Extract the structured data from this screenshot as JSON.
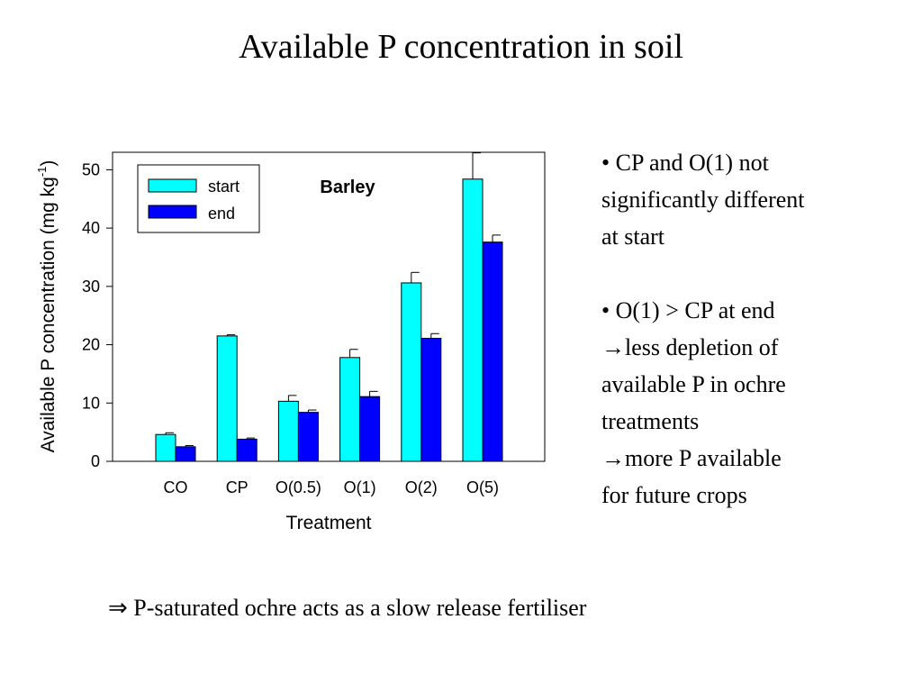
{
  "title": "Available P concentration in soil",
  "chart_data": {
    "type": "bar",
    "annotation": "Barley",
    "xlabel": "Treatment",
    "ylabel_main": "Available P concentration (mg kg",
    "ylabel_sup": "-1",
    "ylabel_close": ")",
    "ylim": [
      0,
      53
    ],
    "yticks": [
      0,
      10,
      20,
      30,
      40,
      50
    ],
    "grid": false,
    "legend_position": "top-left",
    "categories": [
      "CO",
      "CP",
      "O(0.5)",
      "O(1)",
      "O(2)",
      "O(5)"
    ],
    "series": [
      {
        "name": "start",
        "color": "#00FFFF",
        "values": [
          4.6,
          21.5,
          10.3,
          17.8,
          30.6,
          48.4
        ],
        "errors": [
          0.3,
          0.2,
          1.0,
          1.4,
          1.8,
          4.5
        ]
      },
      {
        "name": "end",
        "color": "#0000FF",
        "values": [
          2.5,
          3.8,
          8.4,
          11.1,
          21.1,
          37.6
        ],
        "errors": [
          0.2,
          0.2,
          0.4,
          0.9,
          0.8,
          1.2
        ]
      }
    ]
  },
  "bullets": {
    "b1": [
      "• CP and O(1) not",
      "significantly different",
      "at start"
    ],
    "b2": [
      "• O(1) > CP at end",
      "→less depletion of",
      "available P in ochre",
      "treatments",
      "→more P available",
      "for future crops"
    ]
  },
  "conclusion": "⇒ P-saturated ochre acts as a slow release fertiliser"
}
